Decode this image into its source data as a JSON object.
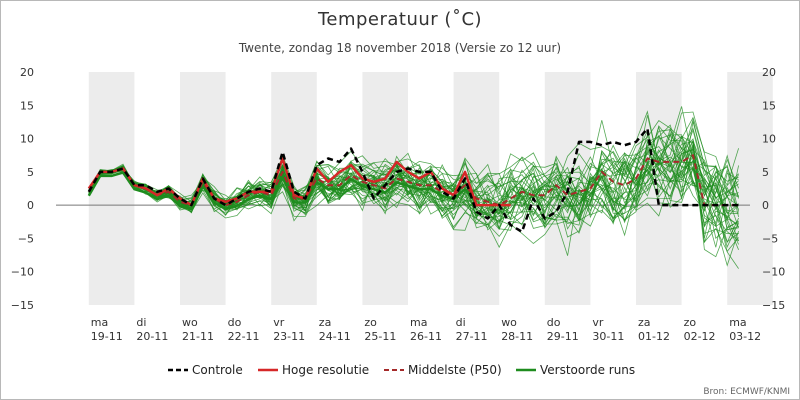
{
  "chart_data": {
    "type": "line",
    "title": "Temperatuur (˚C)",
    "subtitle": "Twente, zondag 18 november 2018 (Versie zo 12 uur)",
    "source": "Bron: ECMWF/KNMI",
    "ylim": [
      -15,
      20
    ],
    "yticks": [
      "20",
      "15",
      "10",
      "5",
      "0",
      "−5",
      "−10",
      "−15"
    ],
    "ytick_values": [
      20,
      15,
      10,
      5,
      0,
      -5,
      -10,
      -15
    ],
    "x_range": [
      0,
      15
    ],
    "days": [
      {
        "day": "ma",
        "date": "19-11",
        "shaded": true
      },
      {
        "day": "di",
        "date": "20-11",
        "shaded": false
      },
      {
        "day": "wo",
        "date": "21-11",
        "shaded": true
      },
      {
        "day": "do",
        "date": "22-11",
        "shaded": false
      },
      {
        "day": "vr",
        "date": "23-11",
        "shaded": true
      },
      {
        "day": "za",
        "date": "24-11",
        "shaded": false
      },
      {
        "day": "zo",
        "date": "25-11",
        "shaded": true
      },
      {
        "day": "ma",
        "date": "26-11",
        "shaded": false
      },
      {
        "day": "di",
        "date": "27-11",
        "shaded": true
      },
      {
        "day": "wo",
        "date": "28-11",
        "shaded": false
      },
      {
        "day": "do",
        "date": "29-11",
        "shaded": true
      },
      {
        "day": "vr",
        "date": "30-11",
        "shaded": false
      },
      {
        "day": "za",
        "date": "01-12",
        "shaded": true
      },
      {
        "day": "zo",
        "date": "02-12",
        "shaded": false
      },
      {
        "day": "ma",
        "date": "03-12",
        "shaded": true
      }
    ],
    "colors": {
      "controle": "#000000",
      "hoge_resolutie": "#d62728",
      "middelste": "#a52a2a",
      "verstoorde": "#1e8c1e",
      "shade": "#ececec",
      "zero_line": "#777777"
    },
    "series": [
      {
        "name": "Controle",
        "style": "dashed",
        "x": [
          0.5,
          0.75,
          1,
          1.25,
          1.5,
          1.75,
          2,
          2.25,
          2.5,
          2.75,
          3,
          3.25,
          3.5,
          3.75,
          4,
          4.25,
          4.5,
          4.75,
          5,
          5.25,
          5.5,
          5.75,
          6,
          6.25,
          6.5,
          6.75,
          7,
          7.25,
          7.5,
          7.75,
          8,
          8.25,
          8.5,
          8.75,
          9,
          9.25,
          9.5,
          9.75,
          10,
          10.25,
          10.5,
          10.75,
          11,
          11.25,
          11.5,
          11.75,
          12,
          12.25,
          12.5,
          12.75,
          13,
          13.25,
          13.5,
          13.75,
          14,
          14.25,
          14.5,
          14.75
        ],
        "y": [
          2,
          5,
          5,
          5.5,
          3,
          3,
          2,
          2.5,
          1,
          0,
          4,
          1,
          0,
          1,
          2,
          2.5,
          2,
          8,
          2,
          1,
          6,
          7,
          6.5,
          8.5,
          5,
          1,
          3,
          5,
          5.5,
          5,
          5,
          2,
          1,
          4,
          -1,
          -2,
          0,
          -3,
          -4,
          1,
          -2,
          -1,
          2,
          9.5,
          9.5,
          9,
          9.5,
          9,
          9.5,
          11.5,
          0,
          0,
          0,
          0,
          0,
          0,
          0,
          0
        ]
      },
      {
        "name": "Hoge resolutie",
        "style": "solid",
        "x": [
          0.5,
          0.75,
          1,
          1.25,
          1.5,
          1.75,
          2,
          2.25,
          2.5,
          2.75,
          3,
          3.25,
          3.5,
          3.75,
          4,
          4.25,
          4.5,
          4.75,
          5,
          5.25,
          5.5,
          5.75,
          6,
          6.25,
          6.5,
          6.75,
          7,
          7.25,
          7.5,
          7.75,
          8,
          8.25,
          8.5,
          8.75,
          9,
          9.25,
          9.5,
          9.75
        ],
        "y": [
          2.5,
          5,
          5,
          5.5,
          3,
          2.5,
          1.5,
          2.5,
          1,
          0,
          4,
          1,
          0.5,
          1,
          2,
          2,
          2,
          7,
          1.5,
          1,
          5.5,
          3.5,
          5,
          6,
          4,
          3.5,
          4,
          6.5,
          5,
          4,
          5,
          2.5,
          1.5,
          5,
          0,
          0,
          0,
          0
        ]
      },
      {
        "name": "Middelste (P50)",
        "style": "dashed",
        "x": [
          0.5,
          0.75,
          1,
          1.25,
          1.5,
          1.75,
          2,
          2.25,
          2.5,
          2.75,
          3,
          3.25,
          3.5,
          3.75,
          4,
          4.25,
          4.5,
          4.75,
          5,
          5.25,
          5.5,
          5.75,
          6,
          6.25,
          6.5,
          6.75,
          7,
          7.25,
          7.5,
          7.75,
          8,
          8.25,
          8.5,
          8.75,
          9,
          9.25,
          9.5,
          9.75,
          10,
          10.25,
          10.5,
          10.75,
          11,
          11.25,
          11.5,
          11.75,
          12,
          12.25,
          12.5,
          12.75,
          13,
          13.25,
          13.5,
          13.75,
          14,
          14.25,
          14.5,
          14.75
        ],
        "y": [
          2,
          5,
          5,
          5.5,
          3,
          2.5,
          1.5,
          2,
          0.5,
          0,
          3.5,
          1,
          0,
          0.5,
          1.5,
          2,
          1.5,
          5,
          1,
          1,
          4,
          3,
          3,
          4.5,
          3.5,
          3,
          2.5,
          4,
          3.5,
          3,
          3,
          2,
          1.5,
          3,
          1,
          0.5,
          0,
          1,
          2,
          1.5,
          1.5,
          3,
          1.5,
          2,
          2.5,
          5,
          3.5,
          3,
          4,
          7,
          6.5,
          6.5,
          6.5,
          7.5,
          0,
          0,
          0,
          0
        ]
      },
      {
        "name": "Verstoorde runs",
        "style": "solid",
        "x": [],
        "y": []
      }
    ]
  }
}
